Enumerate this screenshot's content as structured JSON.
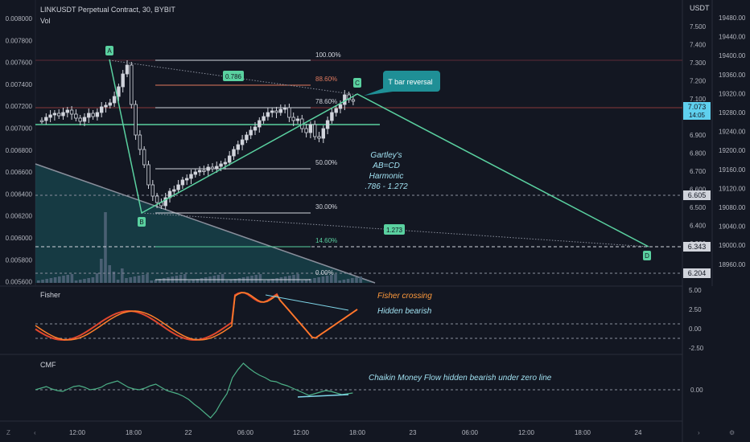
{
  "header": {
    "symbol_line": "LINKUSDT Perpetual Contract, 30, BYBIT",
    "vol_label": "Vol",
    "currency": "USDT"
  },
  "left_axis": {
    "labels": [
      "0.008000",
      "0.007800",
      "0.007600",
      "0.007400",
      "0.007200",
      "0.007000",
      "0.006800",
      "0.006600",
      "0.006400",
      "0.006200",
      "0.006000",
      "0.005800",
      "0.005600"
    ]
  },
  "mid_axis": {
    "labels": [
      "7.500",
      "7.400",
      "7.300",
      "7.200",
      "7.100",
      "7.000",
      "6.900",
      "6.800",
      "6.700",
      "6.600",
      "6.500",
      "6.400",
      "6.300"
    ]
  },
  "right_axis": {
    "labels": [
      "19480.00",
      "19440.00",
      "19400.00",
      "19360.00",
      "19320.00",
      "19280.00",
      "19240.00",
      "19200.00",
      "19160.00",
      "19120.00",
      "19080.00",
      "19040.00",
      "19000.00",
      "18960.00"
    ]
  },
  "price_badges": {
    "last_price": "7.073",
    "countdown": "14:05",
    "level_1": "6.605",
    "level_2": "6.343",
    "level_3": "6.204"
  },
  "time_axis": {
    "labels": [
      "12:00",
      "18:00",
      "22",
      "06:00",
      "12:00",
      "18:00",
      "23",
      "06:00",
      "12:00",
      "18:00",
      "24"
    ]
  },
  "fib": {
    "levels": [
      "100.00%",
      "88.60%",
      "78.60%",
      "50.00%",
      "30.00%",
      "14.60%",
      "0.00%"
    ]
  },
  "points": {
    "a": "A",
    "b": "B",
    "c": "C",
    "d": "D"
  },
  "ratios": {
    "bc": "0.786",
    "cd": "1.273"
  },
  "annotations": {
    "callout": "T bar reversal",
    "pattern_lines": [
      "Gartley's",
      "AB=CD",
      "Harmonic",
      ".786 - 1.272"
    ],
    "fisher_crossing": "Fisher crossing",
    "hidden_bearish": "Hidden bearish",
    "cmf_note": "Chaikin Money Flow hidden bearish under zero line"
  },
  "fisher": {
    "title": "Fisher",
    "labels": [
      "5.00",
      "2.50",
      "0.00",
      "-2.50"
    ]
  },
  "cmf": {
    "title": "CMF",
    "labels": [
      "0.00"
    ]
  },
  "colors": {
    "bg": "#131722",
    "green": "#5ad1a0",
    "teal": "#22979b",
    "orange": "#ff7f2a",
    "fisher_red": "#e0472e",
    "cmf_line": "#4caf86"
  },
  "chart_data": {
    "type": "candlestick",
    "title": "LINKUSDT Perpetual Contract, 30, BYBIT",
    "y_unit": "USDT",
    "ylim": [
      6.3,
      7.5
    ],
    "harmonic_points": {
      "A": 7.32,
      "B": 6.51,
      "C": 7.1,
      "D": 6.33
    },
    "fib_levels_pct": [
      100,
      88.6,
      78.6,
      50,
      30,
      14.6,
      0
    ],
    "fisher_levels": [
      5.0,
      2.5,
      0.0,
      -2.5
    ],
    "cmf_levels": [
      0.0
    ]
  }
}
